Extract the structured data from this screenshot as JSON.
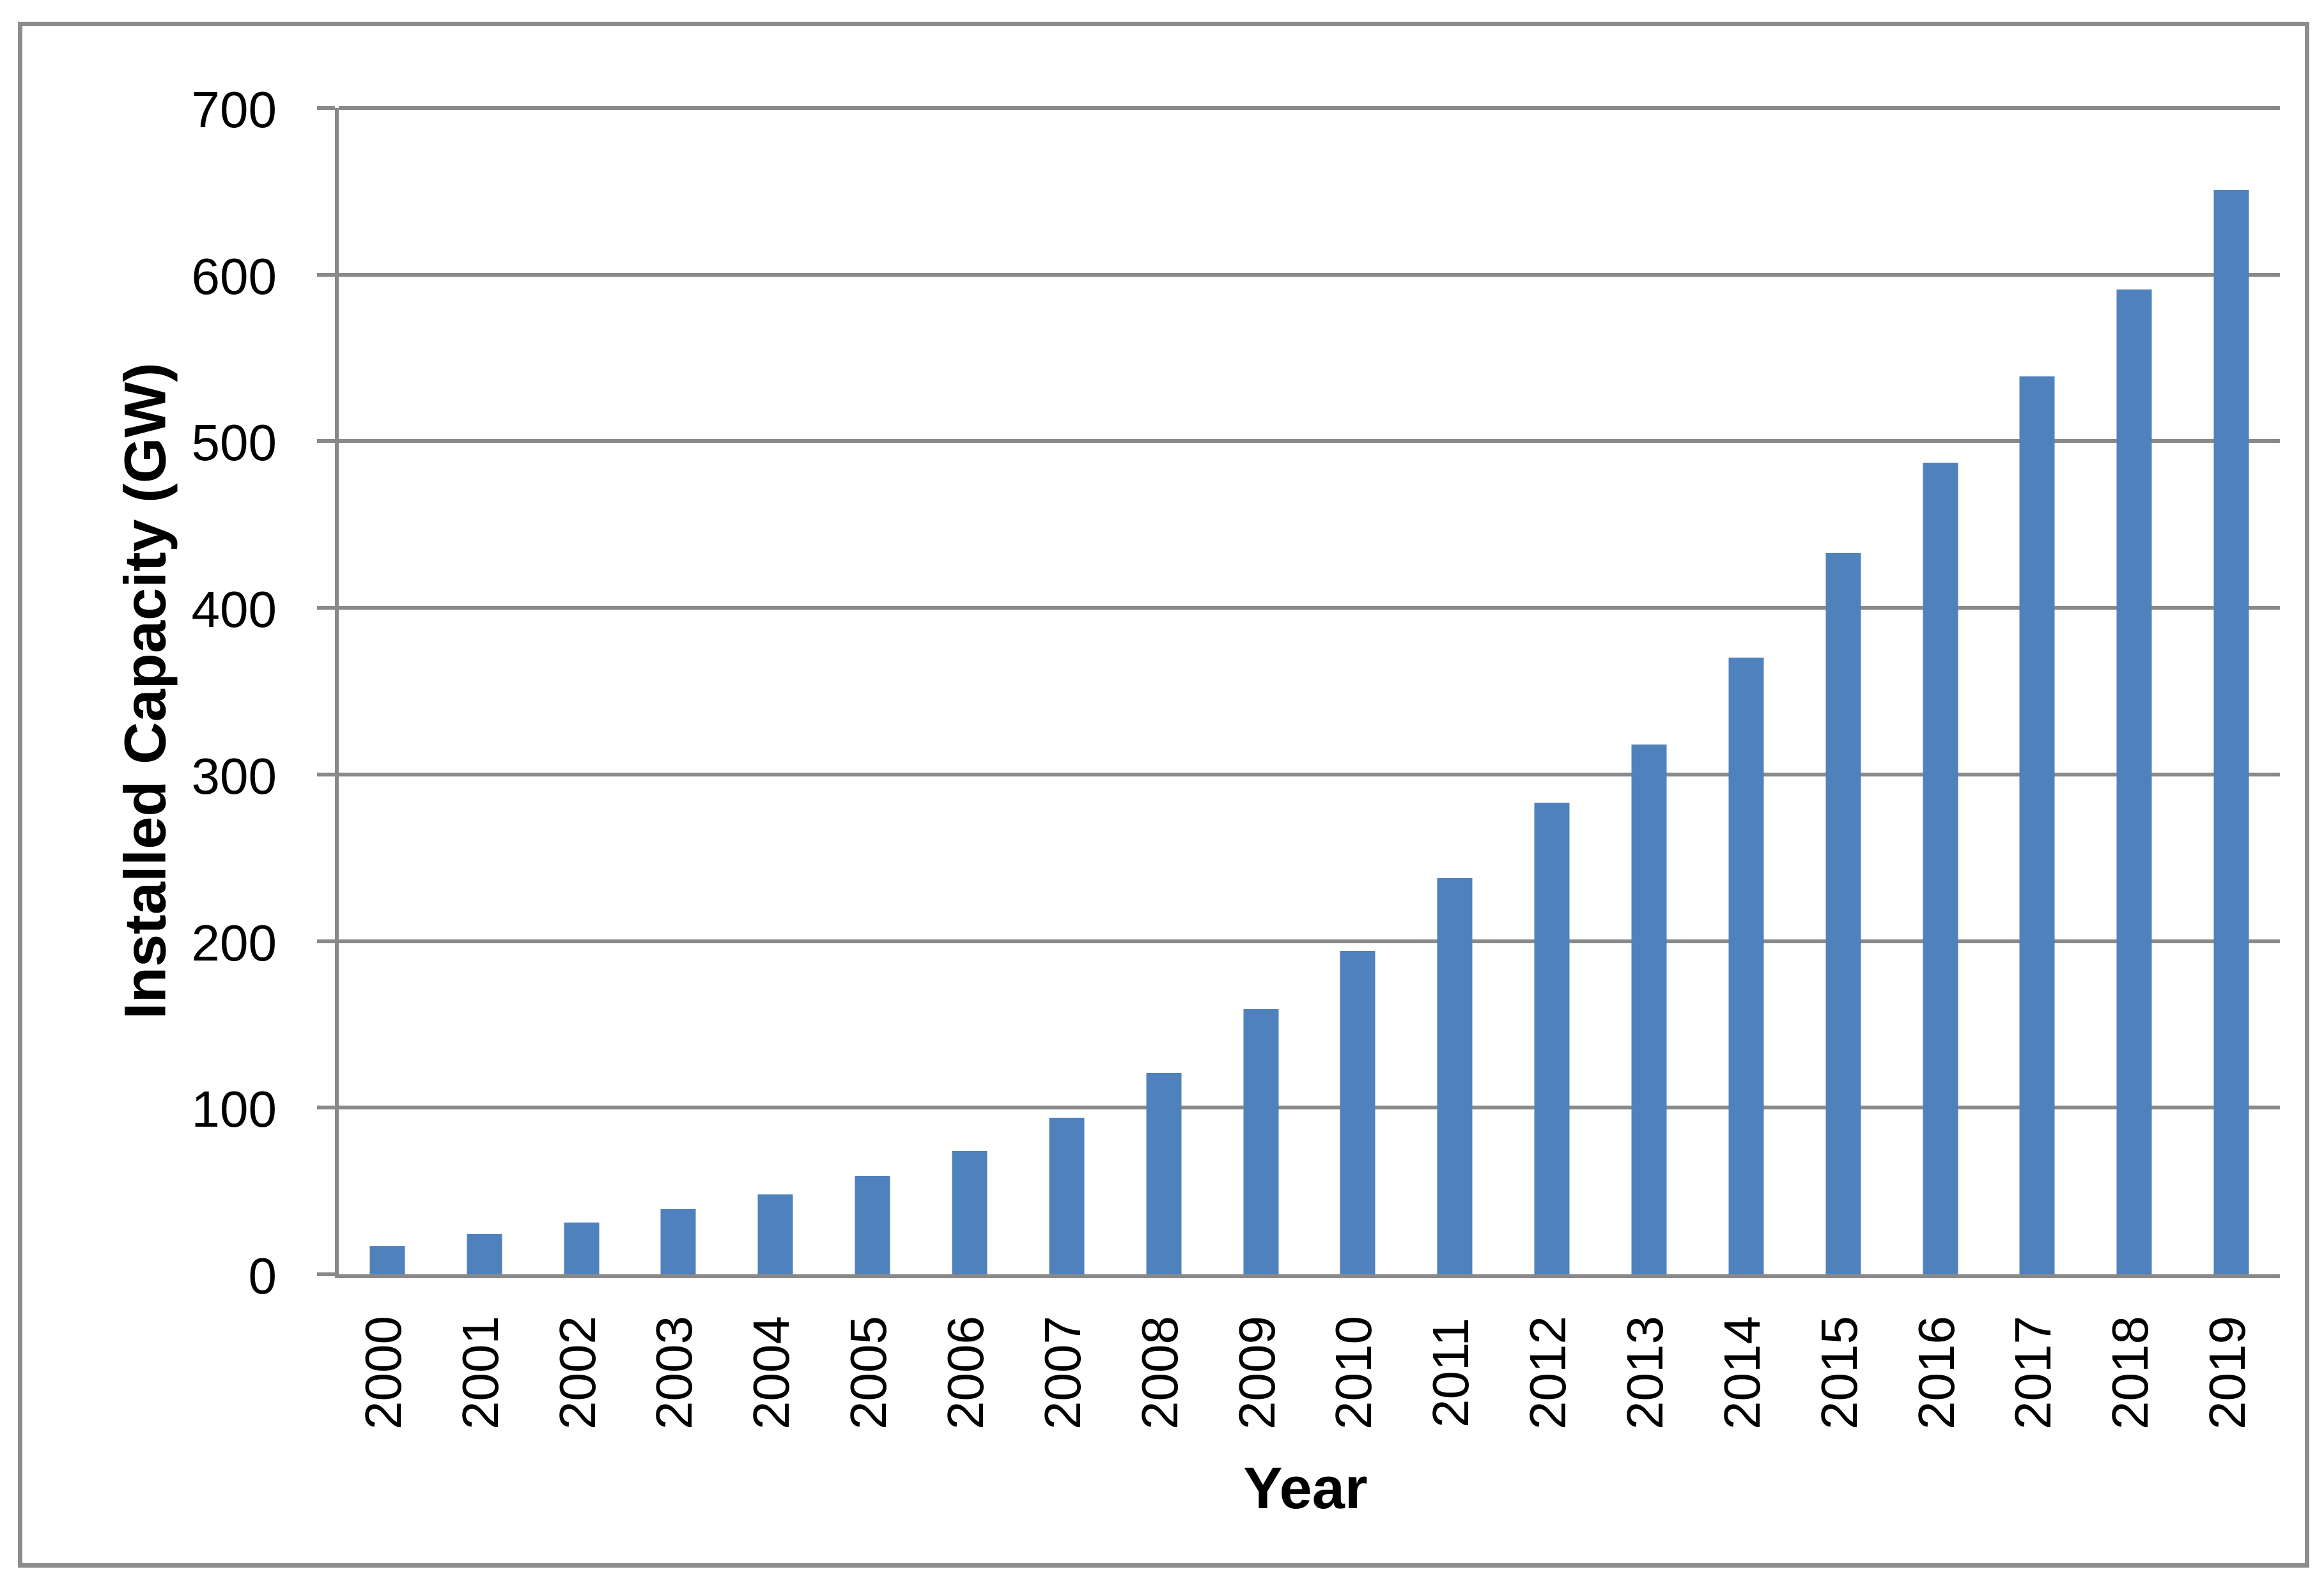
{
  "chart_data": {
    "type": "bar",
    "title": "",
    "xlabel": "Year",
    "ylabel": "Installed Capacity (GW)",
    "categories": [
      "2000",
      "2001",
      "2002",
      "2003",
      "2004",
      "2005",
      "2006",
      "2007",
      "2008",
      "2009",
      "2010",
      "2011",
      "2012",
      "2013",
      "2014",
      "2015",
      "2016",
      "2017",
      "2018",
      "2019"
    ],
    "values": [
      17,
      24,
      31,
      39,
      48,
      59,
      74,
      94,
      121,
      159,
      194,
      238,
      283,
      318,
      370,
      433,
      487,
      539,
      591,
      651
    ],
    "ylim": [
      0,
      700
    ],
    "ytick_step": 100,
    "y_tick_labels": [
      "700",
      "600",
      "500",
      "400",
      "300",
      "200",
      "100",
      "0"
    ],
    "grid": true,
    "legend_position": "none",
    "bar_color": "#4F81BD",
    "gridline_color": "#898989",
    "axis_color": "#898989",
    "frame_color": "#8C8C8C",
    "text_color": "#000000"
  }
}
